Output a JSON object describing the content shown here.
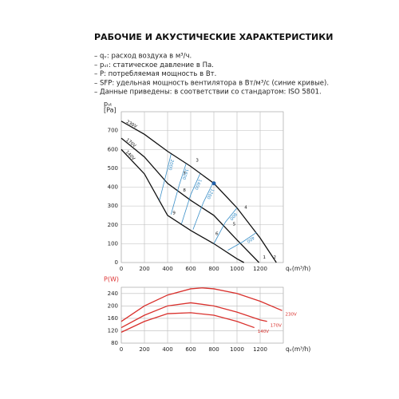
{
  "header": {
    "title": "РАБОЧИЕ И АКУСТИЧЕСКИЕ ХАРАКТЕРИСТИКИ",
    "notes": [
      "– qᵥ: расход воздуха в м³/ч.",
      "– pₛₜ: статическое давление в Па.",
      "– P: потребляемая мощность в Вт.",
      "– SFP: удельная мощность вентилятора в Вт/м³/с (синие кривые).",
      "– Данные приведены: в соответствии со стандартом: ISO 5801."
    ]
  },
  "chart_data": [
    {
      "type": "line",
      "ylabel": [
        "pₛₜ",
        "[Pa]"
      ],
      "xlabel": "qᵥ(m³/h)",
      "label_color": "#222",
      "xlim": [
        0,
        1400
      ],
      "xticks": [
        0,
        200,
        400,
        600,
        800,
        1000,
        1200
      ],
      "ylim": [
        0,
        800
      ],
      "yticks": [
        0,
        100,
        200,
        300,
        400,
        500,
        600,
        700
      ],
      "grid": true,
      "series": [
        {
          "name": "230V",
          "color": "#111",
          "x": [
            0,
            200,
            400,
            600,
            800,
            1000,
            1200,
            1340
          ],
          "values": [
            750,
            680,
            590,
            510,
            420,
            290,
            130,
            0
          ]
        },
        {
          "name": "170V",
          "color": "#111",
          "x": [
            0,
            200,
            400,
            600,
            800,
            1000,
            1190
          ],
          "values": [
            660,
            560,
            420,
            330,
            250,
            120,
            0
          ]
        },
        {
          "name": "140V",
          "color": "#111",
          "x": [
            0,
            200,
            400,
            600,
            800,
            1000,
            1060
          ],
          "values": [
            600,
            470,
            250,
            170,
            100,
            20,
            0
          ]
        }
      ],
      "sfp_series": [
        {
          "name": "2000",
          "color": "#3a8fc8",
          "x": [
            430,
            380,
            330
          ],
          "values": [
            575,
            450,
            330
          ]
        },
        {
          "name": "1600",
          "color": "#3a8fc8",
          "x": [
            560,
            500,
            430
          ],
          "values": [
            525,
            410,
            255
          ]
        },
        {
          "name": "1400",
          "color": "#3a8fc8",
          "x": [
            680,
            600,
            520
          ],
          "values": [
            470,
            360,
            205
          ]
        },
        {
          "name": "1200",
          "color": "#3a8fc8",
          "x": [
            790,
            710,
            620
          ],
          "values": [
            420,
            320,
            175
          ]
        },
        {
          "name": "800",
          "color": "#3a8fc8",
          "x": [
            1000,
            900,
            800
          ],
          "values": [
            290,
            215,
            100
          ]
        },
        {
          "name": "400",
          "color": "#3a8fc8",
          "x": [
            1170,
            1050,
            920
          ],
          "values": [
            160,
            110,
            65
          ]
        }
      ],
      "points": [
        {
          "label": "1",
          "x": 1210,
          "y": 15
        },
        {
          "label": "2",
          "x": 1300,
          "y": 15
        },
        {
          "label": "3",
          "x": 630,
          "y": 530
        },
        {
          "label": "4",
          "x": 1050,
          "y": 280
        },
        {
          "label": "5",
          "x": 950,
          "y": 190
        },
        {
          "label": "6",
          "x": 800,
          "y": 140
        },
        {
          "label": "7",
          "x": 520,
          "y": 460
        },
        {
          "label": "8",
          "x": 520,
          "y": 370
        },
        {
          "label": "9",
          "x": 430,
          "y": 250
        }
      ],
      "operating_point": {
        "x": 800,
        "y": 420,
        "color": "#1f5fa8"
      }
    },
    {
      "type": "line",
      "ylabel": [
        "P(W)"
      ],
      "xlabel": "qᵥ(m³/h)",
      "label_color": "#d33",
      "xlim": [
        0,
        1400
      ],
      "xticks": [
        0,
        200,
        400,
        600,
        800,
        1000,
        1200
      ],
      "ylim": [
        80,
        260
      ],
      "yticks": [
        80,
        120,
        160,
        200,
        240
      ],
      "grid": true,
      "series": [
        {
          "name": "230V",
          "color": "#d9302c",
          "x": [
            0,
            200,
            400,
            600,
            700,
            800,
            1000,
            1200,
            1390
          ],
          "values": [
            150,
            200,
            235,
            255,
            258,
            255,
            240,
            215,
            185
          ]
        },
        {
          "name": "170V",
          "color": "#d9302c",
          "x": [
            0,
            200,
            400,
            600,
            800,
            1000,
            1200,
            1260
          ],
          "values": [
            130,
            170,
            200,
            210,
            200,
            180,
            155,
            150
          ]
        },
        {
          "name": "140V",
          "color": "#d9302c",
          "x": [
            0,
            200,
            400,
            600,
            800,
            1000,
            1150
          ],
          "values": [
            115,
            150,
            175,
            178,
            170,
            150,
            130
          ]
        }
      ]
    }
  ]
}
